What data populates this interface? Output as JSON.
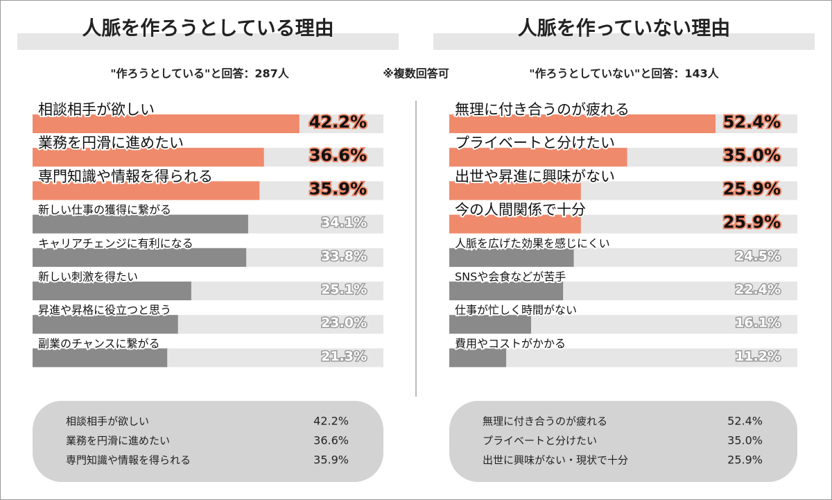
{
  "note": "※複数回答可",
  "chart_data": [
    {
      "type": "bar",
      "orientation": "horizontal",
      "title": "人脈を作ろうとしている理由",
      "subtitle": "\"作ろうとしている\"と回答：287人",
      "categories": [
        "相談相手が欲しい",
        "業務を円滑に進めたい",
        "専門知識や情報を得られる",
        "新しい仕事の獲得に繋がる",
        "キャリアチェンジに有利になる",
        "新しい刺激を得たい",
        "昇進や昇格に役立つと思う",
        "副業のチャンスに繋がる"
      ],
      "values": [
        42.2,
        36.6,
        35.9,
        34.1,
        33.8,
        25.1,
        23.0,
        21.3
      ],
      "value_labels": [
        "42.2%",
        "36.6%",
        "35.9%",
        "34.1%",
        "33.8%",
        "25.1%",
        "23.0%",
        "21.3%"
      ],
      "colors": [
        "#ef8a6c",
        "#ef8a6c",
        "#ef8a6c",
        "#8a8a8a",
        "#8a8a8a",
        "#8a8a8a",
        "#8a8a8a",
        "#8a8a8a"
      ],
      "xlim": [
        0,
        55.5
      ],
      "summary": [
        {
          "label": "相談相手が欲しい",
          "value": "42.2%"
        },
        {
          "label": "業務を円滑に進めたい",
          "value": "36.6%"
        },
        {
          "label": "専門知識や情報を得られる",
          "value": "35.9%"
        }
      ]
    },
    {
      "type": "bar",
      "orientation": "horizontal",
      "title": "人脈を作っていない理由",
      "subtitle": "\"作ろうとしていない\"と回答：143人",
      "categories": [
        "無理に付き合うのが疲れる",
        "プライベートと分けたい",
        "出世や昇進に興味がない",
        "今の人間関係で十分",
        "人脈を広げた効果を感じにくい",
        "SNSや会食などが苦手",
        "仕事が忙しく時間がない",
        "費用やコストがかかる"
      ],
      "values": [
        52.4,
        35.0,
        25.9,
        25.9,
        24.5,
        22.4,
        16.1,
        11.2
      ],
      "value_labels": [
        "52.4%",
        "35.0%",
        "25.9%",
        "25.9%",
        "24.5%",
        "22.4%",
        "16.1%",
        "11.2%"
      ],
      "colors": [
        "#ef8a6c",
        "#ef8a6c",
        "#ef8a6c",
        "#ef8a6c",
        "#8a8a8a",
        "#8a8a8a",
        "#8a8a8a",
        "#8a8a8a"
      ],
      "xlim": [
        0,
        68.5
      ],
      "summary": [
        {
          "label": "無理に付き合うのが疲れる",
          "value": "52.4%"
        },
        {
          "label": "プライベートと分けたい",
          "value": "35.0%"
        },
        {
          "label": "出世に興味がない・現状で十分",
          "value": "25.9%"
        }
      ]
    }
  ]
}
